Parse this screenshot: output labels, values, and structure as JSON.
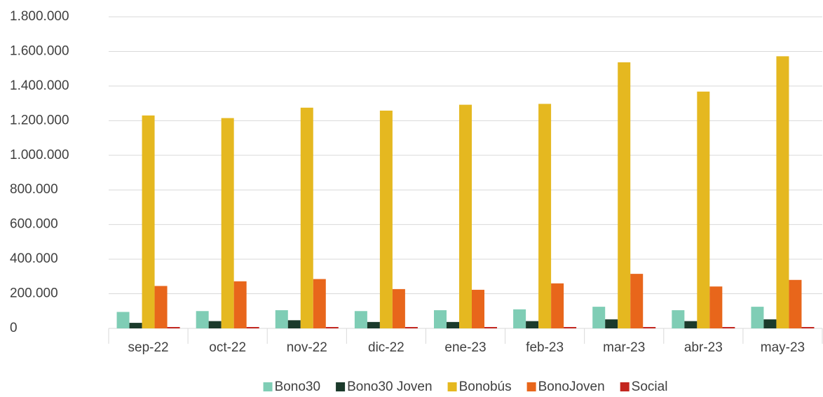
{
  "chart_data": {
    "type": "bar",
    "categories": [
      "sep-22",
      "oct-22",
      "nov-22",
      "dic-22",
      "ene-23",
      "feb-23",
      "mar-23",
      "abr-23",
      "may-23"
    ],
    "series": [
      {
        "name": "Bono30",
        "color": "#7fcdb5",
        "values": [
          95000,
          100000,
          105000,
          100000,
          105000,
          110000,
          125000,
          105000,
          125000
        ]
      },
      {
        "name": "Bono30 Joven",
        "color": "#1b3a2b",
        "values": [
          32000,
          42000,
          47000,
          37000,
          37000,
          42000,
          52000,
          42000,
          52000
        ]
      },
      {
        "name": "Bonobús",
        "color": "#e5b820",
        "values": [
          1230000,
          1215000,
          1275000,
          1258000,
          1292000,
          1297000,
          1537000,
          1368000,
          1572000
        ]
      },
      {
        "name": "BonoJoven",
        "color": "#e8661b",
        "values": [
          245000,
          272000,
          285000,
          227000,
          223000,
          260000,
          315000,
          242000,
          280000
        ]
      },
      {
        "name": "Social",
        "color": "#c3261f",
        "values": [
          8000,
          8000,
          8000,
          8000,
          8000,
          8000,
          8000,
          8000,
          8000
        ]
      }
    ],
    "ylim": [
      0,
      1800000
    ],
    "yticks": [
      0,
      {
        "value": 200000,
        "label": "200.000"
      },
      {
        "value": 400000,
        "label": "400.000"
      },
      {
        "value": 600000,
        "label": "600.000"
      },
      {
        "value": 800000,
        "label": "800.000"
      },
      {
        "value": 1000000,
        "label": "1.000.000"
      },
      {
        "value": 1200000,
        "label": "1.200.000"
      },
      {
        "value": 1400000,
        "label": "1.400.000"
      },
      {
        "value": 1600000,
        "label": "1.600.000"
      },
      {
        "value": 1800000,
        "label": "1.800.000"
      }
    ],
    "grid": true,
    "legend": "bottom"
  }
}
